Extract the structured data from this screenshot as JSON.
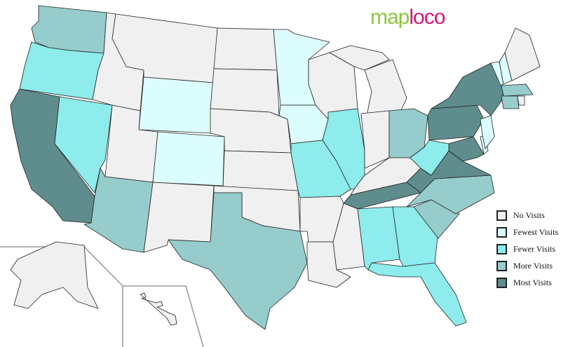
{
  "logo": {
    "part1": "map",
    "part2": "loco"
  },
  "legend": [
    {
      "key": "none",
      "label": "No Visits",
      "color": "#f0f0f0"
    },
    {
      "key": "fewest",
      "label": "Fewest Visits",
      "color": "#dcfdfd"
    },
    {
      "key": "fewer",
      "label": "Fewer Visits",
      "color": "#8eecec"
    },
    {
      "key": "more",
      "label": "More Visits",
      "color": "#96cccc"
    },
    {
      "key": "most",
      "label": "Most Visits",
      "color": "#5f8c8c"
    }
  ],
  "states": {
    "WA": "more",
    "OR": "fewer",
    "CA": "most",
    "NV": "fewer",
    "ID": "none",
    "MT": "none",
    "WY": "fewest",
    "UT": "none",
    "CO": "fewest",
    "AZ": "more",
    "NM": "none",
    "ND": "none",
    "SD": "none",
    "NE": "none",
    "KS": "none",
    "OK": "none",
    "TX": "more",
    "MN": "fewest",
    "IA": "fewest",
    "MO": "fewer",
    "AR": "none",
    "LA": "none",
    "WI": "none",
    "IL": "fewer",
    "MI": "none",
    "IN": "none",
    "OH": "more",
    "KY": "none",
    "TN": "most",
    "MS": "none",
    "AL": "fewer",
    "GA": "fewer",
    "FL": "fewer",
    "SC": "more",
    "NC": "more",
    "VA": "most",
    "WV": "fewer",
    "PA": "most",
    "NY": "most",
    "MD": "most",
    "DE": "fewest",
    "NJ": "fewest",
    "VT": "fewest",
    "NH": "fewest",
    "ME": "none",
    "MA": "more",
    "CT": "more",
    "RI": "none",
    "AK": "none",
    "HI": "none"
  }
}
